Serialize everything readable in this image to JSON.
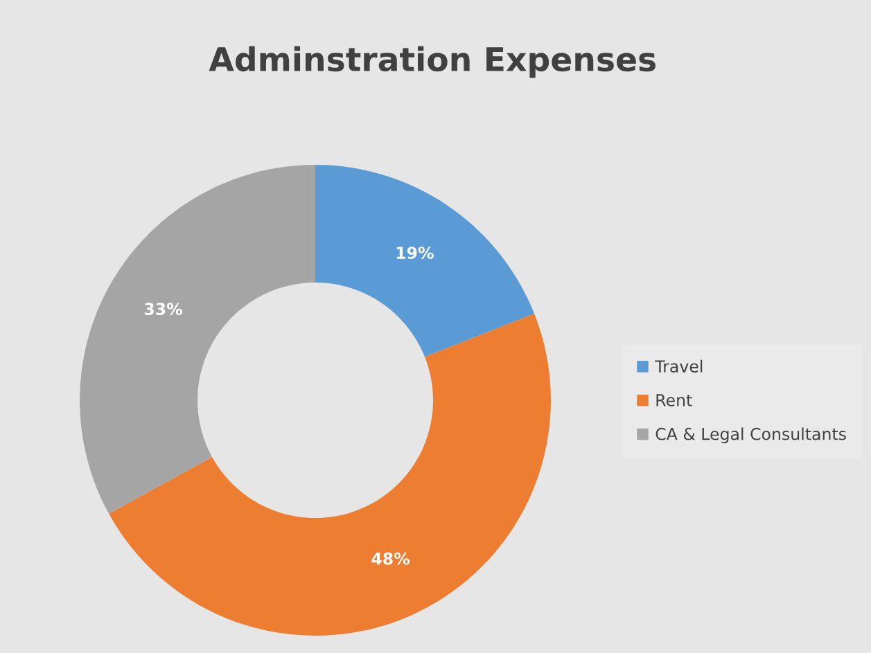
{
  "chart_data": {
    "type": "donut",
    "title": "Adminstration Expenses",
    "categories": [
      "Travel",
      "Rent",
      "CA & Legal Consultants"
    ],
    "values": [
      19,
      48,
      33
    ],
    "value_labels": [
      "19%",
      "48%",
      "33%"
    ],
    "colors": [
      "#5b9bd5",
      "#ed7d31",
      "#a5a5a5"
    ],
    "legend": "right"
  }
}
